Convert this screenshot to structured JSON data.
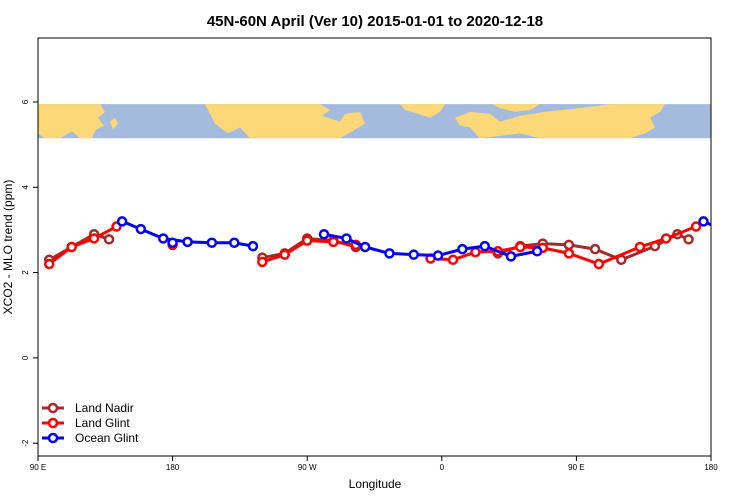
{
  "chart_data": {
    "type": "line",
    "title": "45N-60N April (Ver 10)   2015-01-01 to 2020-12-18",
    "xlabel": "Longitude",
    "ylabel": "XCO2 - MLO trend (ppm)",
    "xlim": [
      -90,
      270
    ],
    "ylim": [
      -2.3,
      7.5
    ],
    "x_ticks": [
      {
        "value": -90,
        "label": "90 E"
      },
      {
        "value": -18,
        "label": "180"
      },
      {
        "value": 54,
        "label": "90 W"
      },
      {
        "value": 126,
        "label": "0"
      },
      {
        "value": 198,
        "label": "90 E"
      },
      {
        "value": 270,
        "label": "180"
      }
    ],
    "y_ticks": [
      {
        "value": -2,
        "label": "-2"
      },
      {
        "value": 0,
        "label": "0"
      },
      {
        "value": 2,
        "label": "2"
      },
      {
        "value": 4,
        "label": "4"
      },
      {
        "value": 6,
        "label": "6"
      }
    ],
    "grid": false,
    "map_band": {
      "ymin": 5.15,
      "ymax": 5.95,
      "land_color": "#fdd879",
      "ocean_color": "#a4bbdd"
    },
    "legend": {
      "position": "bottom-left"
    },
    "series": [
      {
        "name": "Land Nadir",
        "color": "#a52a2a",
        "segments": [
          [
            [
              -84,
              2.3
            ],
            [
              -72,
              2.6
            ],
            [
              -60,
              2.9
            ],
            [
              -52,
              2.78
            ]
          ],
          [
            [
              30,
              2.35
            ],
            [
              42,
              2.45
            ],
            [
              54,
              2.8
            ],
            [
              68,
              2.75
            ],
            [
              80,
              2.6
            ]
          ],
          [
            [
              156,
              2.45
            ],
            [
              168,
              2.62
            ],
            [
              180,
              2.68
            ],
            [
              194,
              2.65
            ],
            [
              208,
              2.55
            ],
            [
              222,
              2.3
            ],
            [
              240,
              2.62
            ],
            [
              252,
              2.9
            ],
            [
              258,
              2.78
            ]
          ]
        ]
      },
      {
        "name": "Land Glint",
        "color": "#ff0000",
        "segments": [
          [
            [
              -84,
              2.2
            ],
            [
              -72,
              2.6
            ],
            [
              -60,
              2.8
            ],
            [
              -48,
              3.08
            ]
          ],
          [
            [
              30,
              2.25
            ],
            [
              42,
              2.42
            ],
            [
              54,
              2.75
            ],
            [
              68,
              2.72
            ],
            [
              80,
              2.65
            ]
          ],
          [
            [
              -18,
              2.65
            ]
          ],
          [
            [
              120,
              2.33
            ],
            [
              132,
              2.3
            ],
            [
              144,
              2.48
            ],
            [
              156,
              2.5
            ],
            [
              168,
              2.6
            ],
            [
              180,
              2.58
            ],
            [
              194,
              2.45
            ],
            [
              210,
              2.2
            ],
            [
              232,
              2.6
            ],
            [
              246,
              2.8
            ],
            [
              262,
              3.08
            ]
          ]
        ]
      },
      {
        "name": "Ocean Glint",
        "color": "#0000ff",
        "segments": [
          [
            [
              -45,
              3.2
            ],
            [
              -35,
              3.02
            ],
            [
              -23,
              2.8
            ],
            [
              -10,
              2.72
            ],
            [
              3,
              2.7
            ],
            [
              15,
              2.7
            ],
            [
              25,
              2.62
            ]
          ],
          [
            [
              63,
              2.9
            ],
            [
              75,
              2.8
            ],
            [
              85,
              2.6
            ],
            [
              98,
              2.45
            ],
            [
              111,
              2.42
            ],
            [
              124,
              2.4
            ],
            [
              137,
              2.55
            ],
            [
              149,
              2.62
            ],
            [
              163,
              2.38
            ],
            [
              177,
              2.5
            ]
          ],
          [
            [
              -18,
              2.7
            ]
          ],
          [
            [
              266,
              3.2
            ],
            [
              276,
              3.0
            ],
            [
              288,
              2.82
            ]
          ]
        ]
      }
    ]
  }
}
